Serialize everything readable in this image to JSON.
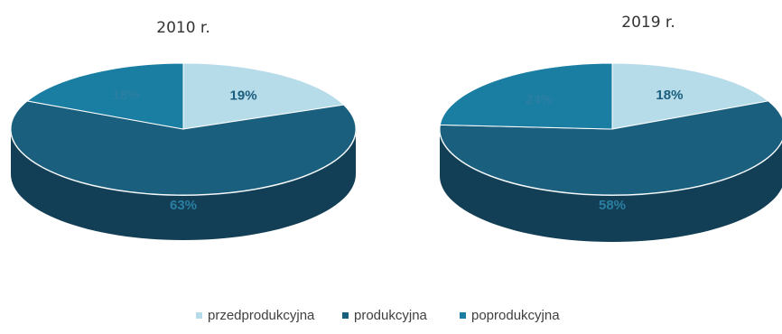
{
  "chart_data": [
    {
      "type": "pie",
      "title": "2010 r.",
      "slices": [
        {
          "name": "przedprodukcyjna",
          "label": "19%",
          "value": 19
        },
        {
          "name": "produkcyjna",
          "label": "63%",
          "value": 63
        },
        {
          "name": "poprodukcyjna",
          "label": "18%",
          "value": 18
        }
      ],
      "legend_position": "bottom"
    },
    {
      "type": "pie",
      "title": "2019 r.",
      "slices": [
        {
          "name": "przedprodukcyjna",
          "label": "18%",
          "value": 18
        },
        {
          "name": "produkcyjna",
          "label": "58%",
          "value": 58
        },
        {
          "name": "poprodukcyjna",
          "label": "24%",
          "value": 24
        }
      ],
      "legend_position": "bottom"
    }
  ],
  "legend": [
    {
      "label": "przedprodukcyjna",
      "color": "#b6dbe9"
    },
    {
      "label": "produkcyjna",
      "color": "#1b5f7e"
    },
    {
      "label": "poprodukcyjna",
      "color": "#1a7ea3"
    }
  ],
  "colors": {
    "przedprodukcyjna": {
      "top": "#b6dbe9",
      "side": "#8fbccd"
    },
    "produkcyjna": {
      "top": "#1b5f7e",
      "side": "#123f55"
    },
    "poprodukcyjna": {
      "top": "#1a7ea3",
      "side": "#135d78"
    },
    "rim": "#dfe9ee"
  }
}
